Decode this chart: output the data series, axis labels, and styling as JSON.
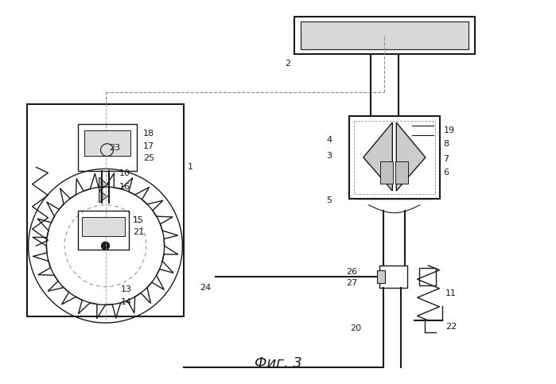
{
  "bg_color": "#ffffff",
  "line_color": "#1a1a1a",
  "fig_label": "Фиг. 3",
  "fig_label_fontsize": 13
}
